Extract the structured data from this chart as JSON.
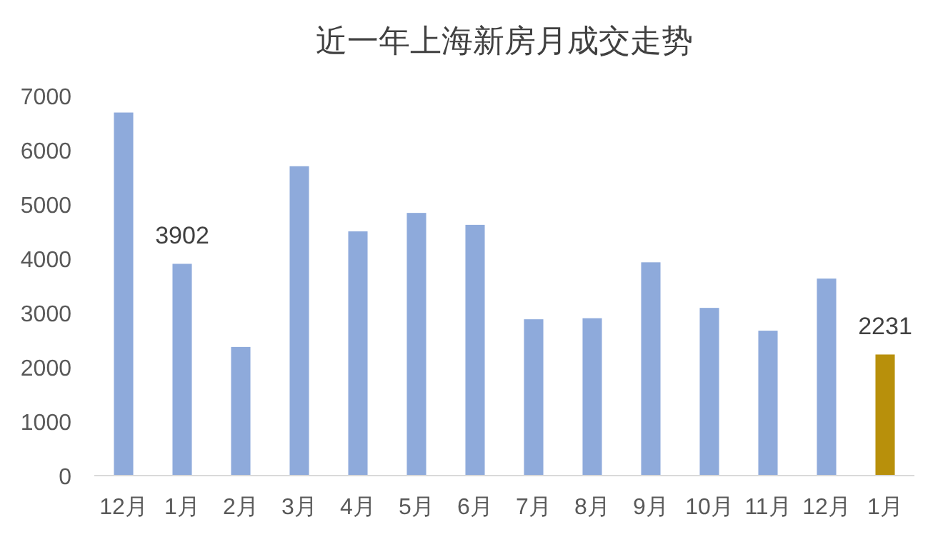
{
  "chart_data": {
    "type": "bar",
    "title": "近一年上海新房月成交走势",
    "categories": [
      "12月",
      "1月",
      "2月",
      "3月",
      "4月",
      "5月",
      "6月",
      "7月",
      "8月",
      "9月",
      "10月",
      "11月",
      "12月",
      "1月"
    ],
    "values": [
      6690,
      3902,
      2370,
      5700,
      4500,
      4840,
      4620,
      2880,
      2900,
      3930,
      3090,
      2670,
      3630,
      2231
    ],
    "colors": [
      "#8eaadb",
      "#8eaadb",
      "#8eaadb",
      "#8eaadb",
      "#8eaadb",
      "#8eaadb",
      "#8eaadb",
      "#8eaadb",
      "#8eaadb",
      "#8eaadb",
      "#8eaadb",
      "#8eaadb",
      "#8eaadb",
      "#b8900b"
    ],
    "value_labels": [
      null,
      "3902",
      null,
      null,
      null,
      null,
      null,
      null,
      null,
      null,
      null,
      null,
      null,
      "2231"
    ],
    "ylim": [
      0,
      7000
    ],
    "yticks": [
      0,
      1000,
      2000,
      3000,
      4000,
      5000,
      6000,
      7000
    ],
    "grid": false
  }
}
